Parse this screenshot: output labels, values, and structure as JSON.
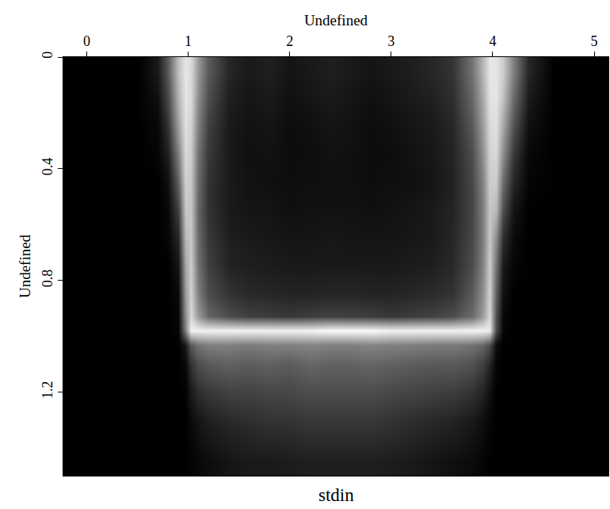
{
  "chart_data": {
    "type": "heatmap",
    "title": "stdin",
    "x_label": "Undefined",
    "y_label": "Undefined",
    "xlim": [
      -0.23,
      5.14
    ],
    "ylim": [
      1.5,
      0
    ],
    "xticks": [
      0,
      1,
      2,
      3,
      4,
      5
    ],
    "yticks": [
      0,
      0.4,
      0.8,
      1.2
    ],
    "zlim": [
      0,
      1
    ],
    "colors": [
      "#000000",
      "#ffffff"
    ],
    "grid": false,
    "x": [
      -0.1,
      0.2,
      0.5,
      0.7,
      0.8,
      0.9,
      0.97,
      1.03,
      1.1,
      1.2,
      1.4,
      1.6,
      1.8,
      2.0,
      2.2,
      2.4,
      2.6,
      2.8,
      3.0,
      3.2,
      3.4,
      3.6,
      3.8,
      3.9,
      3.97,
      4.03,
      4.1,
      4.2,
      4.35,
      4.6,
      4.85,
      5.1
    ],
    "y": [
      0.05,
      0.15,
      0.25,
      0.35,
      0.45,
      0.55,
      0.65,
      0.75,
      0.85,
      0.93,
      0.98,
      1.03,
      1.1,
      1.2,
      1.3,
      1.45
    ],
    "cells": [
      [
        0,
        0,
        0,
        0.1,
        0.35,
        0.75,
        0.9,
        0.85,
        0.6,
        0.35,
        0.15,
        0.1,
        0.12,
        0.08,
        0.1,
        0.12,
        0.1,
        0.08,
        0.1,
        0.12,
        0.15,
        0.2,
        0.45,
        0.7,
        0.9,
        0.9,
        0.8,
        0.5,
        0.15,
        0,
        0,
        0
      ],
      [
        0,
        0,
        0,
        0.06,
        0.28,
        0.7,
        0.9,
        0.85,
        0.55,
        0.3,
        0.12,
        0.08,
        0.1,
        0.06,
        0.08,
        0.1,
        0.08,
        0.06,
        0.08,
        0.1,
        0.12,
        0.18,
        0.4,
        0.65,
        0.88,
        0.9,
        0.75,
        0.42,
        0.1,
        0,
        0,
        0
      ],
      [
        0,
        0,
        0,
        0.03,
        0.2,
        0.62,
        0.88,
        0.82,
        0.5,
        0.25,
        0.1,
        0.07,
        0.08,
        0.05,
        0.06,
        0.08,
        0.07,
        0.05,
        0.06,
        0.08,
        0.1,
        0.15,
        0.35,
        0.6,
        0.85,
        0.88,
        0.65,
        0.32,
        0.06,
        0,
        0,
        0
      ],
      [
        0,
        0,
        0,
        0.02,
        0.12,
        0.5,
        0.85,
        0.8,
        0.45,
        0.22,
        0.1,
        0.06,
        0.07,
        0.05,
        0.05,
        0.07,
        0.06,
        0.05,
        0.05,
        0.07,
        0.09,
        0.14,
        0.3,
        0.55,
        0.82,
        0.85,
        0.55,
        0.22,
        0.03,
        0,
        0,
        0
      ],
      [
        0,
        0,
        0,
        0,
        0.06,
        0.38,
        0.82,
        0.78,
        0.42,
        0.2,
        0.1,
        0.07,
        0.06,
        0.05,
        0.06,
        0.06,
        0.06,
        0.05,
        0.06,
        0.06,
        0.08,
        0.13,
        0.28,
        0.5,
        0.8,
        0.8,
        0.42,
        0.15,
        0.02,
        0,
        0,
        0
      ],
      [
        0,
        0,
        0,
        0,
        0.03,
        0.25,
        0.78,
        0.78,
        0.4,
        0.2,
        0.1,
        0.08,
        0.08,
        0.06,
        0.07,
        0.07,
        0.07,
        0.06,
        0.07,
        0.08,
        0.1,
        0.14,
        0.27,
        0.48,
        0.78,
        0.72,
        0.3,
        0.08,
        0,
        0,
        0,
        0
      ],
      [
        0,
        0,
        0,
        0,
        0.02,
        0.15,
        0.72,
        0.78,
        0.42,
        0.22,
        0.12,
        0.1,
        0.09,
        0.08,
        0.08,
        0.09,
        0.08,
        0.08,
        0.08,
        0.09,
        0.1,
        0.15,
        0.28,
        0.48,
        0.78,
        0.55,
        0.18,
        0.04,
        0,
        0,
        0,
        0
      ],
      [
        0,
        0,
        0,
        0,
        0,
        0.08,
        0.65,
        0.8,
        0.45,
        0.25,
        0.14,
        0.12,
        0.11,
        0.1,
        0.1,
        0.1,
        0.1,
        0.1,
        0.1,
        0.11,
        0.12,
        0.16,
        0.3,
        0.5,
        0.8,
        0.45,
        0.1,
        0.02,
        0,
        0,
        0,
        0
      ],
      [
        0,
        0,
        0,
        0,
        0,
        0.04,
        0.6,
        0.82,
        0.5,
        0.3,
        0.2,
        0.16,
        0.15,
        0.14,
        0.14,
        0.15,
        0.15,
        0.14,
        0.14,
        0.15,
        0.17,
        0.2,
        0.35,
        0.55,
        0.82,
        0.38,
        0.06,
        0,
        0,
        0,
        0,
        0
      ],
      [
        0,
        0,
        0,
        0,
        0,
        0.02,
        0.55,
        0.85,
        0.6,
        0.4,
        0.3,
        0.25,
        0.24,
        0.22,
        0.24,
        0.26,
        0.25,
        0.24,
        0.22,
        0.24,
        0.26,
        0.3,
        0.42,
        0.6,
        0.85,
        0.32,
        0.03,
        0,
        0,
        0,
        0,
        0
      ],
      [
        0,
        0,
        0,
        0,
        0,
        0.02,
        0.5,
        0.95,
        0.95,
        0.95,
        0.95,
        0.95,
        0.95,
        0.95,
        0.95,
        0.98,
        0.98,
        0.98,
        0.95,
        0.95,
        0.95,
        0.95,
        0.95,
        0.95,
        0.92,
        0.3,
        0.02,
        0,
        0,
        0,
        0,
        0
      ],
      [
        0,
        0,
        0,
        0,
        0,
        0,
        0.1,
        0.35,
        0.45,
        0.5,
        0.5,
        0.48,
        0.5,
        0.5,
        0.52,
        0.5,
        0.5,
        0.52,
        0.5,
        0.5,
        0.48,
        0.48,
        0.45,
        0.4,
        0.3,
        0.05,
        0,
        0,
        0,
        0,
        0,
        0
      ],
      [
        0,
        0,
        0,
        0,
        0,
        0,
        0.03,
        0.2,
        0.3,
        0.35,
        0.38,
        0.36,
        0.38,
        0.36,
        0.4,
        0.38,
        0.38,
        0.4,
        0.38,
        0.36,
        0.35,
        0.35,
        0.32,
        0.25,
        0.15,
        0.02,
        0,
        0,
        0,
        0,
        0,
        0
      ],
      [
        0,
        0,
        0,
        0,
        0,
        0,
        0.01,
        0.1,
        0.18,
        0.22,
        0.26,
        0.26,
        0.28,
        0.28,
        0.3,
        0.3,
        0.3,
        0.3,
        0.28,
        0.27,
        0.25,
        0.24,
        0.2,
        0.14,
        0.06,
        0,
        0,
        0,
        0,
        0,
        0,
        0
      ],
      [
        0,
        0,
        0,
        0,
        0,
        0,
        0,
        0.04,
        0.08,
        0.12,
        0.16,
        0.18,
        0.2,
        0.2,
        0.22,
        0.22,
        0.22,
        0.22,
        0.2,
        0.18,
        0.16,
        0.14,
        0.1,
        0.06,
        0.02,
        0,
        0,
        0,
        0,
        0,
        0,
        0
      ],
      [
        0,
        0,
        0,
        0,
        0,
        0,
        0,
        0.01,
        0.03,
        0.05,
        0.08,
        0.1,
        0.1,
        0.11,
        0.12,
        0.12,
        0.12,
        0.12,
        0.11,
        0.1,
        0.08,
        0.06,
        0.04,
        0.02,
        0,
        0,
        0,
        0,
        0,
        0,
        0,
        0
      ]
    ]
  }
}
